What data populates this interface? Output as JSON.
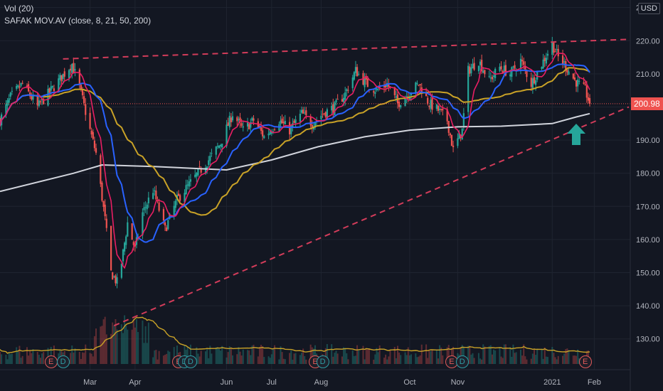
{
  "header": {
    "volume_label": "Vol (20)",
    "ma_label": "SAFAK  MOV.AV (close, 8, 21, 50, 200)",
    "currency": "USD"
  },
  "last_price": "200.98",
  "colors": {
    "background": "#131722",
    "up_candle": "#26a69a",
    "down_candle": "#ef5350",
    "ma8": "#e91e63",
    "ma21": "#2962ff",
    "ma50": "#c9a227",
    "ma200": "#d1d4dc",
    "trendline": "#d23c5a",
    "price_line": "#ef5350",
    "arrow": "#26a69a"
  },
  "events": [
    {
      "type": "E",
      "date": "2020-02-05"
    },
    {
      "type": "D",
      "date": "2020-02-13"
    },
    {
      "type": "E",
      "date": "2020-04-30"
    },
    {
      "type": "D",
      "date": "2020-05-04"
    },
    {
      "type": "D",
      "date": "2020-05-08"
    },
    {
      "type": "E",
      "date": "2020-07-30"
    },
    {
      "type": "D",
      "date": "2020-08-04"
    },
    {
      "type": "E",
      "date": "2020-10-29"
    },
    {
      "type": "D",
      "date": "2020-11-05"
    },
    {
      "type": "E",
      "date": "2021-01-26"
    }
  ],
  "chart_data": {
    "type": "candlestick",
    "title": "SAFAK  MOV.AV (close, 8, 21, 50, 200)",
    "xlabel": "",
    "ylabel": "",
    "y_ticks": [
      130,
      140,
      150,
      160,
      170,
      180,
      190,
      200,
      210,
      220,
      230
    ],
    "y_tick_labels": [
      "130.00",
      "140.00",
      "150.00",
      "160.00",
      "170.00",
      "180.00",
      "190.00",
      "200.00",
      "210.00",
      "220.00",
      "230.00"
    ],
    "ylim": [
      125,
      231
    ],
    "x_ticks": [
      {
        "label": "Mar",
        "date": "2020-03-02"
      },
      {
        "label": "Apr",
        "date": "2020-04-01"
      },
      {
        "label": "Jun",
        "date": "2020-06-01"
      },
      {
        "label": "Jul",
        "date": "2020-07-01"
      },
      {
        "label": "Aug",
        "date": "2020-08-03"
      },
      {
        "label": "Oct",
        "date": "2020-10-01"
      },
      {
        "label": "Nov",
        "date": "2020-11-02"
      },
      {
        "label": "2021",
        "date": "2021-01-04"
      },
      {
        "label": "Feb",
        "date": "2021-02-01"
      }
    ],
    "xlim": [
      "2020-01-02",
      "2021-02-25"
    ],
    "last_price": 200.98,
    "price_anchors": [
      [
        "2020-01-02",
        196
      ],
      [
        "2020-01-09",
        203
      ],
      [
        "2020-01-17",
        207
      ],
      [
        "2020-01-27",
        200
      ],
      [
        "2020-02-05",
        205
      ],
      [
        "2020-02-12",
        209
      ],
      [
        "2020-02-19",
        213
      ],
      [
        "2020-02-24",
        206
      ],
      [
        "2020-03-02",
        193
      ],
      [
        "2020-03-06",
        186
      ],
      [
        "2020-03-12",
        166
      ],
      [
        "2020-03-16",
        150
      ],
      [
        "2020-03-20",
        147
      ],
      [
        "2020-03-23",
        153
      ],
      [
        "2020-03-27",
        165
      ],
      [
        "2020-04-01",
        157
      ],
      [
        "2020-04-06",
        168
      ],
      [
        "2020-04-13",
        175
      ],
      [
        "2020-04-21",
        163
      ],
      [
        "2020-04-29",
        172
      ],
      [
        "2020-05-06",
        176
      ],
      [
        "2020-05-13",
        180
      ],
      [
        "2020-05-20",
        184
      ],
      [
        "2020-05-28",
        189
      ],
      [
        "2020-06-05",
        198
      ],
      [
        "2020-06-12",
        193
      ],
      [
        "2020-06-19",
        196
      ],
      [
        "2020-06-26",
        191
      ],
      [
        "2020-07-06",
        196
      ],
      [
        "2020-07-13",
        193
      ],
      [
        "2020-07-21",
        198
      ],
      [
        "2020-07-28",
        195
      ],
      [
        "2020-08-04",
        198
      ],
      [
        "2020-08-12",
        200
      ],
      [
        "2020-08-19",
        204
      ],
      [
        "2020-08-26",
        211
      ],
      [
        "2020-09-02",
        207
      ],
      [
        "2020-09-09",
        205
      ],
      [
        "2020-09-16",
        207
      ],
      [
        "2020-09-23",
        201
      ],
      [
        "2020-09-30",
        204
      ],
      [
        "2020-10-07",
        207
      ],
      [
        "2020-10-14",
        201
      ],
      [
        "2020-10-20",
        199
      ],
      [
        "2020-10-26",
        196
      ],
      [
        "2020-10-30",
        187
      ],
      [
        "2020-11-05",
        193
      ],
      [
        "2020-11-09",
        211
      ],
      [
        "2020-11-16",
        214
      ],
      [
        "2020-11-23",
        208
      ],
      [
        "2020-11-30",
        212
      ],
      [
        "2020-12-07",
        210
      ],
      [
        "2020-12-14",
        214
      ],
      [
        "2020-12-21",
        207
      ],
      [
        "2020-12-28",
        213
      ],
      [
        "2021-01-04",
        219
      ],
      [
        "2021-01-08",
        215
      ],
      [
        "2021-01-12",
        213
      ],
      [
        "2021-01-19",
        208
      ],
      [
        "2021-01-26",
        205
      ],
      [
        "2021-01-29",
        200.98
      ]
    ],
    "series": [
      {
        "name": "MA 8",
        "values": []
      },
      {
        "name": "MA 21",
        "values": []
      },
      {
        "name": "MA 50",
        "values": []
      },
      {
        "name": "MA 200",
        "values": [
          [
            "2020-01-02",
            174.5
          ],
          [
            "2020-02-20",
            180
          ],
          [
            "2020-03-10",
            182.5
          ],
          [
            "2020-04-15",
            182
          ],
          [
            "2020-06-01",
            181
          ],
          [
            "2020-07-01",
            184
          ],
          [
            "2020-08-01",
            188
          ],
          [
            "2020-09-01",
            191
          ],
          [
            "2020-10-01",
            193
          ],
          [
            "2020-11-02",
            194
          ],
          [
            "2020-12-01",
            194.2
          ],
          [
            "2021-01-04",
            195
          ],
          [
            "2021-01-20",
            197
          ],
          [
            "2021-01-29",
            198
          ]
        ]
      }
    ],
    "trendlines": [
      {
        "from": [
          "2020-02-13",
          214.5
        ],
        "to": [
          "2021-02-24",
          220.4
        ]
      },
      {
        "from": [
          "2020-03-18",
          134
        ],
        "to": [
          "2021-02-24",
          200
        ]
      }
    ],
    "volume": {
      "name": "Vol (20)"
    }
  }
}
